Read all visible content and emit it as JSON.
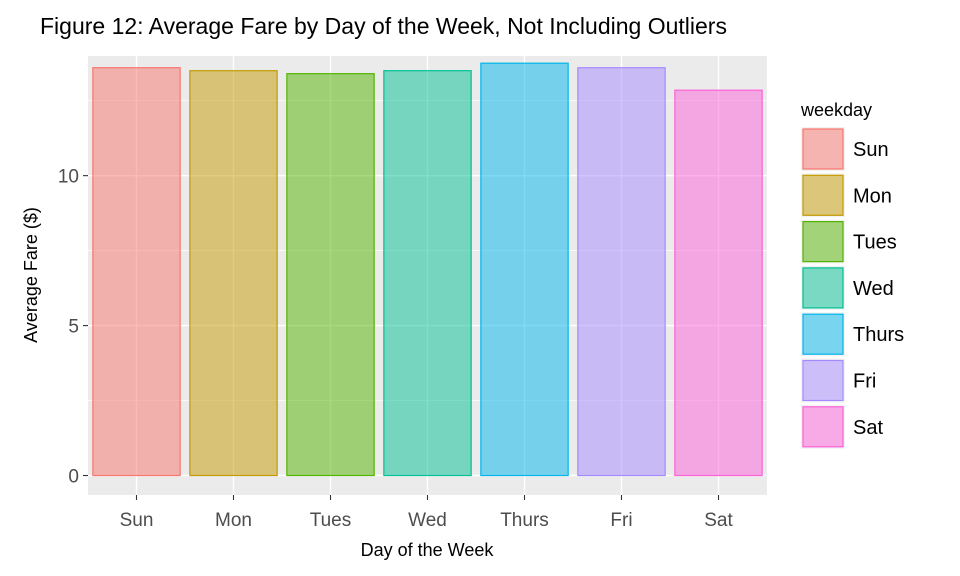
{
  "chart_data": {
    "type": "bar",
    "title": "Figure 12: Average Fare by Day of the Week, Not Including Outliers",
    "xlabel": "Day of the Week",
    "ylabel": "Average Fare ($)",
    "categories": [
      "Sun",
      "Mon",
      "Tues",
      "Wed",
      "Thurs",
      "Fri",
      "Sat"
    ],
    "values": [
      13.6,
      13.5,
      13.4,
      13.5,
      13.75,
      13.6,
      12.85
    ],
    "ylim": [
      -0.65,
      13.99
    ],
    "yticks": [
      0,
      5,
      10
    ],
    "grid": true,
    "legend": {
      "title": "weekday",
      "position": "right",
      "entries": [
        "Sun",
        "Mon",
        "Tues",
        "Wed",
        "Thurs",
        "Fri",
        "Sat"
      ]
    },
    "colors": [
      "#F8766D",
      "#C49A00",
      "#53B400",
      "#00C094",
      "#00B6EB",
      "#A58AFF",
      "#FB61D7"
    ],
    "fill_opacity": 0.5,
    "panel_background": "#EBEBEB"
  }
}
